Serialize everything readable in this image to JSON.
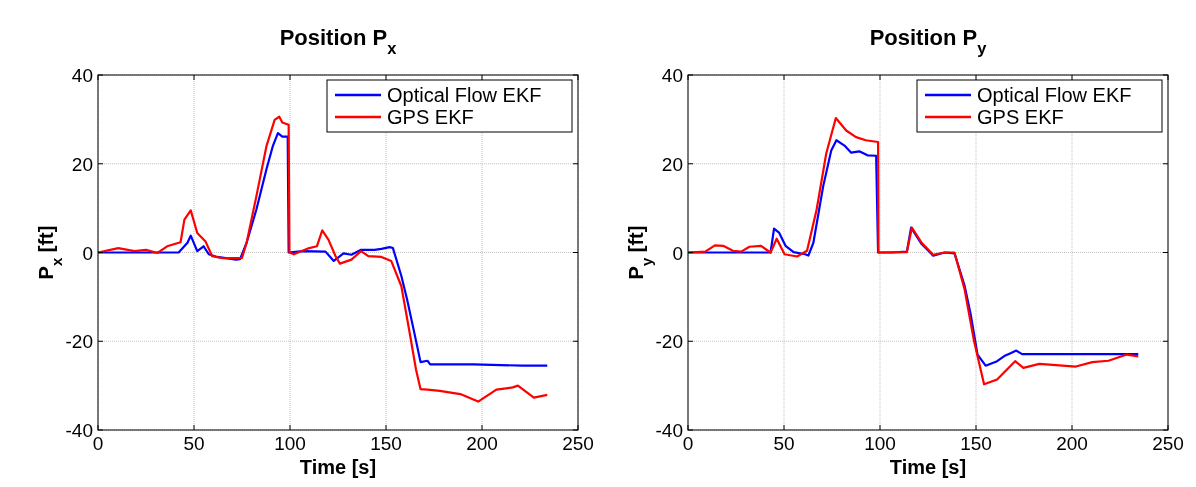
{
  "chart_data": [
    {
      "type": "line",
      "title": "Position P$_{x}$",
      "xlabel": "Time [s]",
      "ylabel": "P$_{x}$ [ft]",
      "xlim": [
        0,
        250
      ],
      "xticks": [
        0,
        50,
        100,
        150,
        200,
        250
      ],
      "ylim": [
        -40,
        40
      ],
      "yticks": [
        -40,
        -20,
        0,
        20,
        40
      ],
      "grid": true,
      "legend": "top right",
      "series": [
        {
          "name": "Optical Flow EKF",
          "color": "#0000ff",
          "x": [
            0,
            42,
            46.6,
            48.3,
            51.7,
            55,
            57.7,
            62,
            72,
            74,
            77.4,
            82.5,
            87.7,
            91,
            93.7,
            96,
            98.8,
            99.3,
            106.5,
            118.5,
            122.8,
            127.9,
            132,
            137,
            144,
            147.6,
            151.9,
            153.6,
            158,
            161,
            164.7,
            168,
            171.6,
            173,
            195.5,
            221,
            234
          ],
          "values": [
            0,
            0,
            2.2,
            3.8,
            0.3,
            1.4,
            -0.4,
            -1,
            -1.6,
            -1.5,
            2.2,
            9.7,
            18.7,
            23.9,
            26.9,
            26.1,
            26.1,
            0,
            0.3,
            0.2,
            -1.9,
            -0.2,
            -0.5,
            0.6,
            0.6,
            0.8,
            1.2,
            1,
            -5.3,
            -10.6,
            -18,
            -24.7,
            -24.4,
            -25.2,
            -25.2,
            -25.5,
            -25.5
          ]
        },
        {
          "name": "GPS EKF",
          "color": "#ff0000",
          "x": [
            0,
            10.6,
            19,
            25,
            31,
            36,
            43,
            45,
            48.3,
            51.7,
            56,
            59.4,
            65,
            75,
            77.4,
            82.5,
            87.7,
            92,
            94.4,
            96,
            99.3,
            99.7,
            102,
            110,
            114,
            116.8,
            120,
            123.7,
            126,
            132,
            137,
            140.8,
            147.6,
            152.7,
            158,
            162,
            165.6,
            168,
            171.6,
            178,
            188.7,
            198,
            207.5,
            216,
            218.7,
            227,
            234
          ],
          "values": [
            0,
            1,
            0.3,
            0.6,
            -0.1,
            1.4,
            2.3,
            7.4,
            9.5,
            4.4,
            2.5,
            -0.8,
            -1.3,
            -1.2,
            2.2,
            12.7,
            23.9,
            29.9,
            30.6,
            29.3,
            28.8,
            0,
            -0.4,
            1,
            1.4,
            5,
            2.9,
            -0.8,
            -2.5,
            -1.6,
            0.3,
            -0.8,
            -1,
            -1.9,
            -7.6,
            -17.3,
            -26.3,
            -30.8,
            -30.9,
            -31.2,
            -31.9,
            -33.6,
            -30.9,
            -30.4,
            -30,
            -32.7,
            -32.1
          ]
        }
      ]
    },
    {
      "type": "line",
      "title": "Position P$_{y}$",
      "xlabel": "Time [s]",
      "ylabel": "P$_{y}$ [ft]",
      "xlim": [
        0,
        250
      ],
      "xticks": [
        0,
        50,
        100,
        150,
        200,
        250
      ],
      "ylim": [
        -40,
        40
      ],
      "yticks": [
        -40,
        -20,
        0,
        20,
        40
      ],
      "grid": true,
      "legend": "top right",
      "series": [
        {
          "name": "Optical Flow EKF",
          "color": "#0000ff",
          "x": [
            0,
            14,
            43,
            44.8,
            47.4,
            50.8,
            55,
            61,
            62.7,
            65.3,
            70.4,
            74.6,
            77.3,
            81.5,
            85,
            89.2,
            93.5,
            98,
            99,
            106.3,
            114,
            116.2,
            121.7,
            127.7,
            133.7,
            138.8,
            144,
            147.3,
            150.8,
            155,
            161,
            165.3,
            168,
            171,
            174,
            234.5
          ],
          "values": [
            0,
            0,
            0,
            5.4,
            4.5,
            1.5,
            0.1,
            -0.4,
            -0.7,
            2.2,
            14.9,
            23,
            25.3,
            24.1,
            22.5,
            22.8,
            21.9,
            21.8,
            0,
            0,
            0.2,
            5.6,
            1.9,
            -0.7,
            0,
            -0.2,
            -7.4,
            -14.1,
            -23,
            -25.5,
            -24.5,
            -23.2,
            -22.7,
            -22.1,
            -22.9,
            -22.9
          ]
        },
        {
          "name": "GPS EKF",
          "color": "#ff0000",
          "x": [
            0,
            9,
            14,
            18.3,
            23.4,
            27.7,
            32,
            38,
            43,
            46.2,
            50.3,
            56.8,
            62,
            67,
            72,
            77,
            82.4,
            87.5,
            92.6,
            99,
            99.2,
            114,
            116.6,
            121.7,
            127.7,
            133.7,
            138.8,
            144,
            149,
            154.2,
            161,
            166,
            170.4,
            174.7,
            183,
            202,
            210.6,
            219,
            228.5,
            234.5
          ],
          "values": [
            0,
            0.2,
            1.6,
            1.5,
            0.4,
            0.2,
            1.3,
            1.5,
            0,
            3.1,
            -0.4,
            -0.9,
            0.4,
            9.7,
            22.3,
            30.3,
            27.5,
            26,
            25.3,
            24.9,
            0,
            0.1,
            5.6,
            2.2,
            -0.5,
            0,
            0,
            -8.2,
            -20,
            -29.7,
            -28.6,
            -26.4,
            -24.5,
            -26,
            -25.1,
            -25.7,
            -24.7,
            -24.4,
            -23,
            -23.4
          ]
        }
      ]
    }
  ]
}
